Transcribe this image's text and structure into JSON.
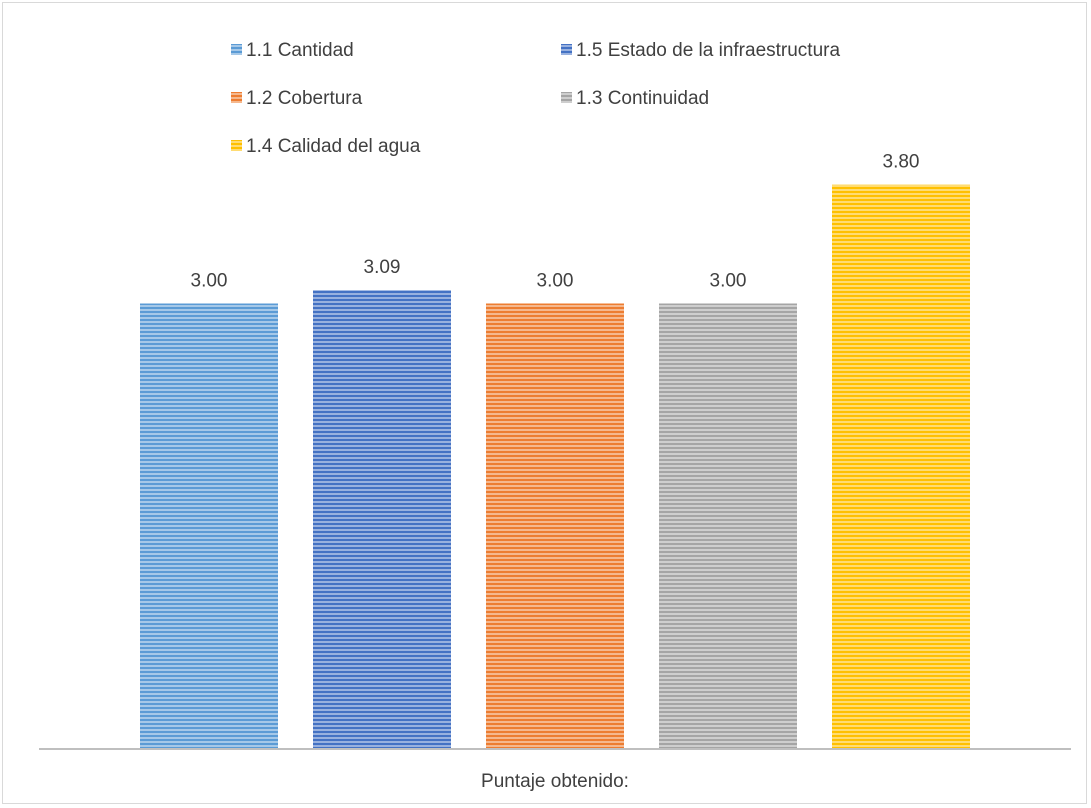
{
  "chart_data": {
    "type": "bar",
    "title": "",
    "xlabel": "Puntaje obtenido:",
    "ylabel": "",
    "ylim": [
      0,
      4.6
    ],
    "grid": false,
    "legend_position": "top",
    "categories": [
      "Puntaje obtenido:"
    ],
    "series": [
      {
        "name": "1.1 Cantidad",
        "values": [
          3.0
        ],
        "label": "3.00",
        "color": "#5b9bd5"
      },
      {
        "name": "1.5 Estado de la infraestructura",
        "values": [
          3.09
        ],
        "label": "3.09",
        "color": "#4472c4"
      },
      {
        "name": "1.2 Cobertura",
        "values": [
          3.0
        ],
        "label": "3.00",
        "color": "#ed7d31"
      },
      {
        "name": "1.3 Continuidad",
        "values": [
          3.0
        ],
        "label": "3.00",
        "color": "#a5a5a5"
      },
      {
        "name": "1.4 Calidad del agua",
        "values": [
          3.8
        ],
        "label": "3.80",
        "color": "#ffc000"
      }
    ]
  }
}
